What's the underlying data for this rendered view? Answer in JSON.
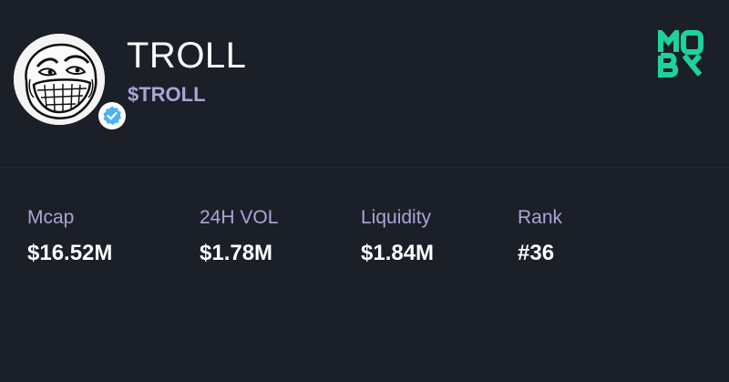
{
  "token": {
    "name": "TROLL",
    "symbol": "$TROLL",
    "avatar_icon": "trollface-icon",
    "verified_icon": "verified-check-icon"
  },
  "brand": {
    "logo_text": "MOBY",
    "color": "#1fd19a"
  },
  "colors": {
    "background": "#1b1f28",
    "label": "#a9a6d6",
    "value": "#ffffff",
    "verified": "#4ab3f4"
  },
  "stats": [
    {
      "label": "Mcap",
      "value": "$16.52M"
    },
    {
      "label": "24H VOL",
      "value": "$1.78M"
    },
    {
      "label": "Liquidity",
      "value": "$1.84M"
    },
    {
      "label": "Rank",
      "value": "#36"
    }
  ]
}
